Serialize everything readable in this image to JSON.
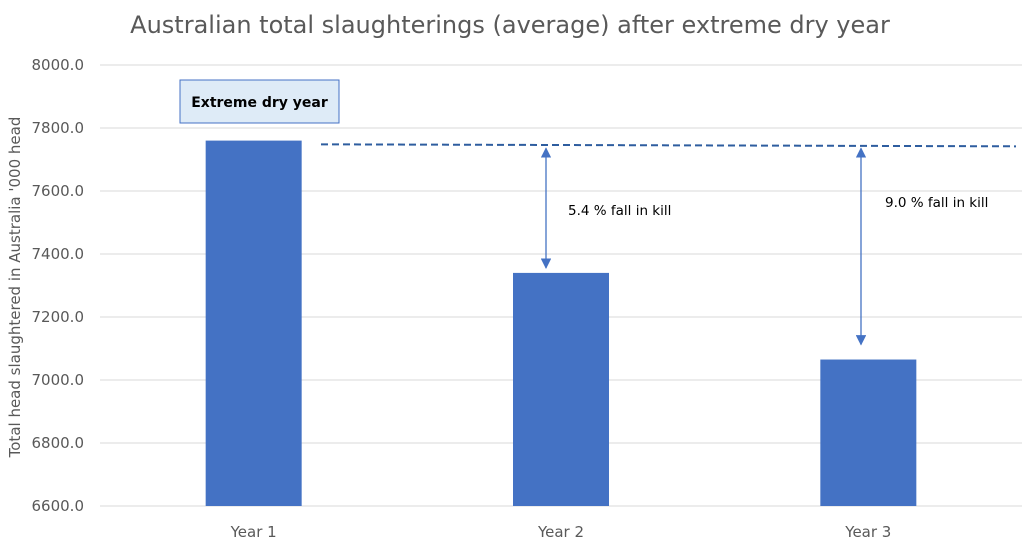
{
  "chart_data": {
    "type": "bar",
    "title": "Australian total slaughterings (average) after extreme dry year",
    "xlabel": "",
    "ylabel": "Total head slaughtered in Australia '000 head",
    "categories": [
      "Year 1",
      "Year 2",
      "Year 3"
    ],
    "values": [
      7760,
      7340,
      7065
    ],
    "ylim": [
      6600,
      8000
    ],
    "ytick_step": 200,
    "yticks": [
      "6600.0",
      "6800.0",
      "7000.0",
      "7200.0",
      "7400.0",
      "7600.0",
      "7800.0",
      "8000.0"
    ],
    "grid": true,
    "bar_color": "#4472C4",
    "reference_line": {
      "value": 7745,
      "style": "dashed",
      "color": "#2E5D9F"
    },
    "annotations": {
      "box": "Extreme dry year",
      "year2": "5.4 % fall in kill",
      "year3": "9.0 % fall in kill"
    }
  }
}
